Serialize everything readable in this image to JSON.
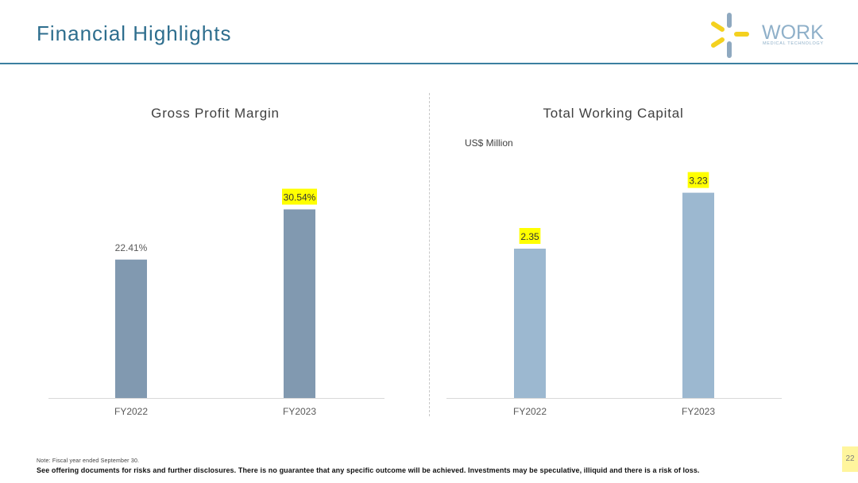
{
  "slide": {
    "title": "Financial Highlights",
    "page_number": "22"
  },
  "logo": {
    "icon": "asterisk-logo-icon",
    "name": "WORK",
    "tagline": "MEDICAL TECHNOLOGY"
  },
  "colors": {
    "title": "#2e6e8e",
    "header_rule": "#3b7fa0",
    "axis": "#d9d9d9",
    "highlight": "#ffff00",
    "page_number_bg": "#fff59d",
    "logo_blue": "#8fa9c0",
    "logo_yellow": "#f4d11f"
  },
  "footer": {
    "note": "Note: Fiscal year ended September 30.",
    "disclaimer": "See offering documents for risks and further disclosures. There is no guarantee that any specific outcome will be achieved. Investments may be speculative, illiquid and there is a risk of loss."
  },
  "chart_data": [
    {
      "type": "bar",
      "title": "Gross Profit Margin",
      "categories": [
        "FY2022",
        "FY2023"
      ],
      "values": [
        22.41,
        30.54
      ],
      "data_labels": [
        "22.41%",
        "30.54%"
      ],
      "highlighted_labels": [
        false,
        true
      ],
      "bar_color": "#8199b0",
      "grid": false
    },
    {
      "type": "bar",
      "title": "Total Working Capital",
      "unit_label": "US$ Million",
      "categories": [
        "FY2022",
        "FY2023"
      ],
      "values": [
        2.35,
        3.23
      ],
      "data_labels": [
        "2.35",
        "3.23"
      ],
      "highlighted_labels": [
        true,
        true
      ],
      "bar_color": "#9cb8d0",
      "grid": false
    }
  ]
}
